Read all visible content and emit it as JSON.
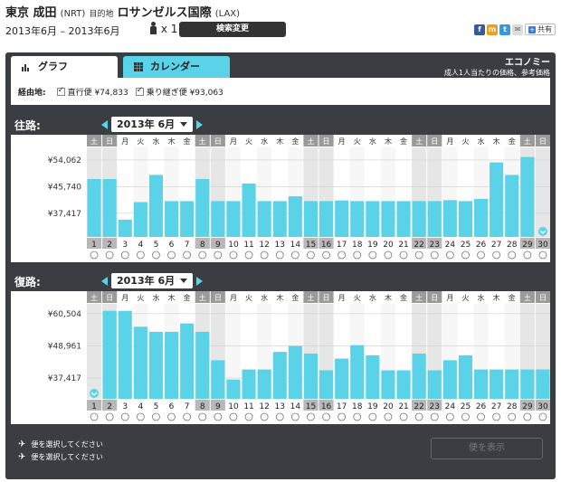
{
  "header": {
    "origin_city": "東京 成田",
    "origin_code": "(NRT)",
    "dest_prefix": "目的地",
    "dest_city": "ロサンゼルス国際",
    "dest_code": "(LAX)",
    "date_range": "2013年6月 – 2013年6月",
    "passengers": "x 1",
    "search_change": "検索変更",
    "share_label": "共有",
    "share_icons": [
      "facebook-icon",
      "mixi-icon",
      "twitter-icon",
      "email-icon"
    ]
  },
  "tabs": [
    {
      "label": "グラフ",
      "active": true,
      "icon": "bar-chart-icon"
    },
    {
      "label": "カレンダー",
      "active": false,
      "icon": "calendar-icon"
    }
  ],
  "economy": {
    "title": "エコノミー",
    "subtitle": "成人1人当たりの価格、参考価格"
  },
  "filter": {
    "label": "経由地:",
    "direct": "直行便 ¥74,833",
    "connecting": "乗り継ぎ便 ¥93,063"
  },
  "colors": {
    "bar": "#5ad3e8",
    "panel": "#3a3d42",
    "weekend": "#c8c8c8"
  },
  "outbound": {
    "title": "往路:",
    "month": "2013年 6月"
  },
  "inbound": {
    "title": "復路:",
    "month": "2013年 6月"
  },
  "chart_data": [
    {
      "type": "bar",
      "title": "往路",
      "y_ticks": [
        "¥54,062",
        "¥45,740",
        "¥37,417"
      ],
      "y_tick_values": [
        54062,
        45740,
        37417
      ],
      "ylim": [
        30000,
        58000
      ],
      "categories": [
        "1",
        "2",
        "3",
        "4",
        "5",
        "6",
        "7",
        "8",
        "9",
        "10",
        "11",
        "12",
        "13",
        "14",
        "15",
        "16",
        "17",
        "18",
        "19",
        "20",
        "21",
        "22",
        "23",
        "24",
        "25",
        "26",
        "27",
        "28",
        "29",
        "30"
      ],
      "weekdays": [
        "土",
        "日",
        "月",
        "火",
        "水",
        "木",
        "金",
        "土",
        "日",
        "月",
        "火",
        "水",
        "木",
        "金",
        "土",
        "日",
        "月",
        "火",
        "水",
        "木",
        "金",
        "土",
        "日",
        "月",
        "火",
        "水",
        "木",
        "金",
        "土",
        "日"
      ],
      "weekend": [
        true,
        true,
        false,
        false,
        false,
        false,
        false,
        true,
        true,
        false,
        false,
        false,
        false,
        false,
        true,
        true,
        false,
        false,
        false,
        false,
        false,
        true,
        true,
        false,
        false,
        false,
        false,
        false,
        true,
        true
      ],
      "values": [
        48100,
        48100,
        35400,
        40900,
        49400,
        41200,
        41200,
        48100,
        41200,
        41200,
        46700,
        41200,
        41200,
        42700,
        41200,
        41200,
        41400,
        41200,
        41200,
        41200,
        41200,
        41200,
        41200,
        41500,
        41200,
        41900,
        53300,
        49400,
        55000,
        null
      ],
      "selected_index": 29
    },
    {
      "type": "bar",
      "title": "復路",
      "y_ticks": [
        "¥60,504",
        "¥48,961",
        "¥37,417"
      ],
      "y_tick_values": [
        60504,
        48961,
        37417
      ],
      "ylim": [
        30000,
        64000
      ],
      "categories": [
        "1",
        "2",
        "3",
        "4",
        "5",
        "6",
        "7",
        "8",
        "9",
        "10",
        "11",
        "12",
        "13",
        "14",
        "15",
        "16",
        "17",
        "18",
        "19",
        "20",
        "21",
        "22",
        "23",
        "24",
        "25",
        "26",
        "27",
        "28",
        "29",
        "30"
      ],
      "weekdays": [
        "土",
        "日",
        "月",
        "火",
        "水",
        "木",
        "金",
        "土",
        "日",
        "月",
        "火",
        "水",
        "木",
        "金",
        "土",
        "日",
        "月",
        "火",
        "水",
        "木",
        "金",
        "土",
        "日",
        "月",
        "火",
        "水",
        "木",
        "金",
        "土",
        "日"
      ],
      "weekend": [
        true,
        true,
        false,
        false,
        false,
        false,
        false,
        true,
        true,
        false,
        false,
        false,
        false,
        false,
        true,
        true,
        false,
        false,
        false,
        false,
        false,
        true,
        true,
        false,
        false,
        false,
        false,
        false,
        true,
        true
      ],
      "values": [
        null,
        61500,
        61500,
        55800,
        54000,
        54000,
        57000,
        54000,
        43800,
        36900,
        40500,
        40500,
        46800,
        48900,
        46200,
        40200,
        44400,
        49200,
        45600,
        40200,
        40200,
        46200,
        40200,
        43800,
        45600,
        40500,
        40500,
        40500,
        40500,
        40500
      ],
      "selected_index": 0
    }
  ],
  "legend": {
    "line1": "便を選択してください",
    "line2": "便を選択してください",
    "icon": "airplane-icon"
  },
  "show_flights": "便を表示"
}
